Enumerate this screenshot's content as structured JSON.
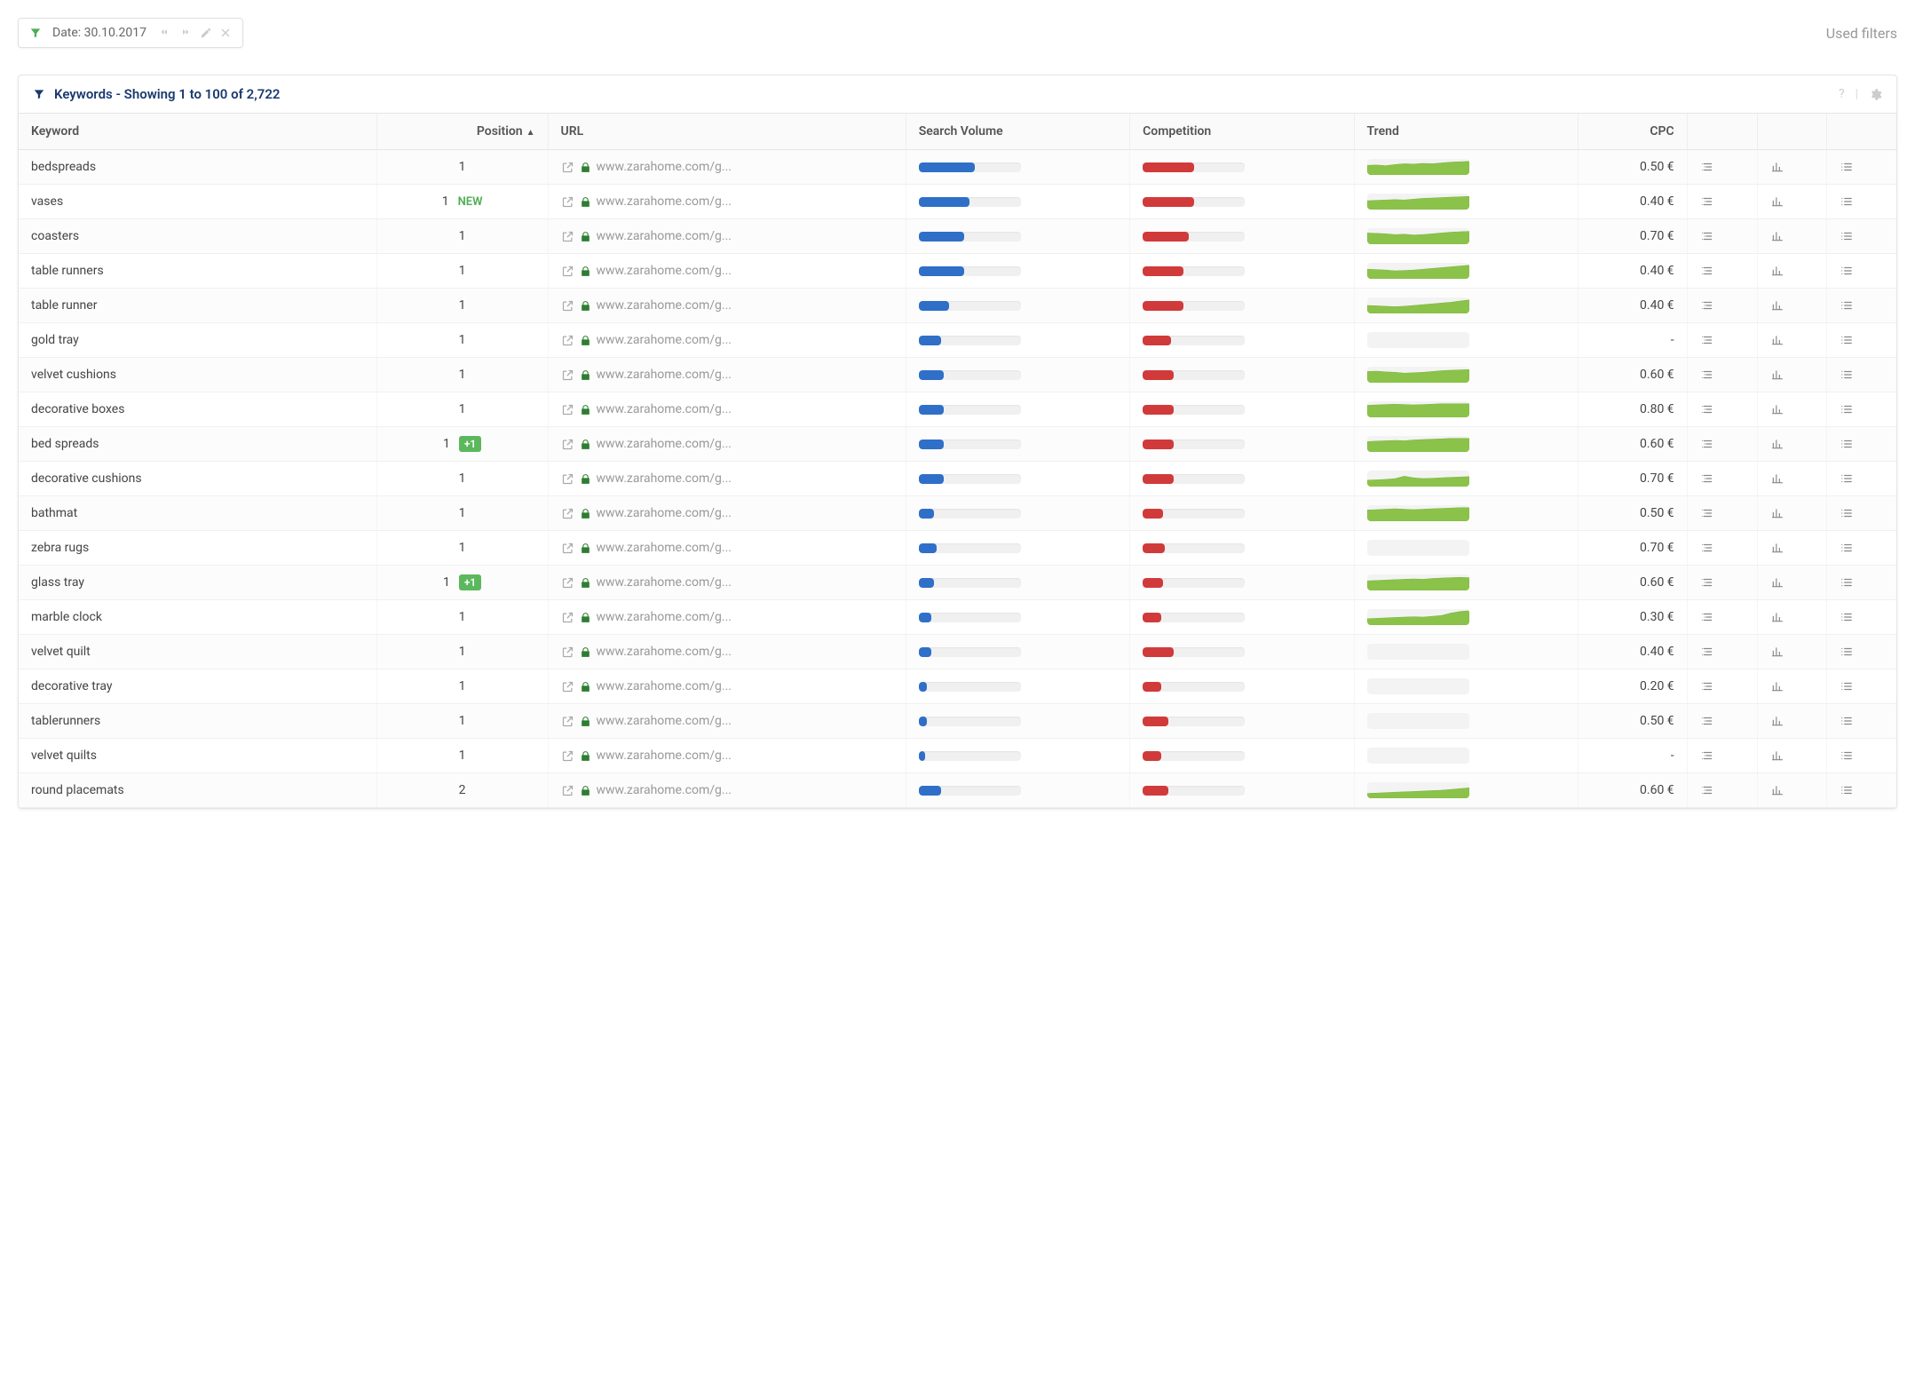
{
  "colors": {
    "sv_bar": "#2f6fc8",
    "comp_bar": "#d13a3a",
    "trend_fill": "#8bc34a",
    "trend_line": "#7cb342",
    "funnel_green": "#4caf50",
    "funnel_blue": "#1a3a6e",
    "lock_green": "#2e7d32",
    "badge_green": "#5cb85c"
  },
  "topbar": {
    "date_label": "Date: 30.10.2017",
    "used_filters": "Used filters"
  },
  "panel": {
    "title": "Keywords - Showing 1 to 100 of 2,722"
  },
  "columns": {
    "keyword": "Keyword",
    "position": "Position",
    "url": "URL",
    "sv": "Search Volume",
    "comp": "Competition",
    "trend": "Trend",
    "cpc": "CPC"
  },
  "rows": [
    {
      "keyword": "bedspreads",
      "position": "1",
      "change": null,
      "url": "www.zarahome.com/g...",
      "sv": 55,
      "comp": 50,
      "trend": [
        0.6,
        0.62,
        0.58,
        0.65,
        0.7,
        0.68,
        0.72,
        0.7,
        0.75,
        0.8,
        0.82,
        0.85
      ],
      "cpc": "0.50 €"
    },
    {
      "keyword": "vases",
      "position": "1",
      "change": "NEW",
      "url": "www.zarahome.com/g...",
      "sv": 50,
      "comp": 50,
      "trend": [
        0.55,
        0.58,
        0.6,
        0.62,
        0.6,
        0.65,
        0.7,
        0.72,
        0.75,
        0.78,
        0.8,
        0.82
      ],
      "cpc": "0.40 €"
    },
    {
      "keyword": "coasters",
      "position": "1",
      "change": null,
      "url": "www.zarahome.com/g...",
      "sv": 45,
      "comp": 45,
      "trend": [
        0.7,
        0.68,
        0.65,
        0.6,
        0.62,
        0.58,
        0.6,
        0.65,
        0.7,
        0.75,
        0.78,
        0.8
      ],
      "cpc": "0.70 €"
    },
    {
      "keyword": "table runners",
      "position": "1",
      "change": null,
      "url": "www.zarahome.com/g...",
      "sv": 45,
      "comp": 40,
      "trend": [
        0.6,
        0.58,
        0.55,
        0.5,
        0.52,
        0.55,
        0.6,
        0.65,
        0.7,
        0.75,
        0.8,
        0.85
      ],
      "cpc": "0.40 €"
    },
    {
      "keyword": "table runner",
      "position": "1",
      "change": null,
      "url": "www.zarahome.com/g...",
      "sv": 30,
      "comp": 40,
      "trend": [
        0.5,
        0.48,
        0.45,
        0.42,
        0.45,
        0.5,
        0.55,
        0.6,
        0.65,
        0.7,
        0.78,
        0.85
      ],
      "cpc": "0.40 €"
    },
    {
      "keyword": "gold tray",
      "position": "1",
      "change": null,
      "url": "www.zarahome.com/g...",
      "sv": 22,
      "comp": 28,
      "trend": null,
      "cpc": "-"
    },
    {
      "keyword": "velvet cushions",
      "position": "1",
      "change": null,
      "url": "www.zarahome.com/g...",
      "sv": 25,
      "comp": 30,
      "trend": [
        0.7,
        0.72,
        0.68,
        0.65,
        0.6,
        0.62,
        0.65,
        0.7,
        0.75,
        0.78,
        0.8,
        0.82
      ],
      "cpc": "0.60 €"
    },
    {
      "keyword": "decorative boxes",
      "position": "1",
      "change": null,
      "url": "www.zarahome.com/g...",
      "sv": 25,
      "comp": 30,
      "trend": [
        0.75,
        0.78,
        0.8,
        0.82,
        0.8,
        0.78,
        0.8,
        0.82,
        0.85,
        0.85,
        0.85,
        0.85
      ],
      "cpc": "0.80 €"
    },
    {
      "keyword": "bed spreads",
      "position": "1",
      "change": "+1",
      "url": "www.zarahome.com/g...",
      "sv": 25,
      "comp": 30,
      "trend": [
        0.65,
        0.68,
        0.7,
        0.72,
        0.7,
        0.75,
        0.78,
        0.8,
        0.82,
        0.85,
        0.85,
        0.85
      ],
      "cpc": "0.60 €"
    },
    {
      "keyword": "decorative cushions",
      "position": "1",
      "change": null,
      "url": "www.zarahome.com/g...",
      "sv": 25,
      "comp": 30,
      "trend": [
        0.4,
        0.42,
        0.45,
        0.5,
        0.65,
        0.55,
        0.5,
        0.52,
        0.55,
        0.58,
        0.6,
        0.62
      ],
      "cpc": "0.70 €"
    },
    {
      "keyword": "bathmat",
      "position": "1",
      "change": null,
      "url": "www.zarahome.com/g...",
      "sv": 15,
      "comp": 20,
      "trend": [
        0.7,
        0.72,
        0.75,
        0.78,
        0.75,
        0.72,
        0.75,
        0.78,
        0.8,
        0.82,
        0.85,
        0.85
      ],
      "cpc": "0.50 €"
    },
    {
      "keyword": "zebra rugs",
      "position": "1",
      "change": null,
      "url": "www.zarahome.com/g...",
      "sv": 18,
      "comp": 22,
      "trend": null,
      "cpc": "0.70 €"
    },
    {
      "keyword": "glass tray",
      "position": "1",
      "change": "+1",
      "url": "www.zarahome.com/g...",
      "sv": 15,
      "comp": 20,
      "trend": [
        0.6,
        0.62,
        0.65,
        0.68,
        0.7,
        0.72,
        0.7,
        0.75,
        0.78,
        0.8,
        0.82,
        0.8
      ],
      "cpc": "0.60 €"
    },
    {
      "keyword": "marble clock",
      "position": "1",
      "change": null,
      "url": "www.zarahome.com/g...",
      "sv": 12,
      "comp": 18,
      "trend": [
        0.4,
        0.42,
        0.45,
        0.48,
        0.5,
        0.52,
        0.5,
        0.55,
        0.6,
        0.75,
        0.85,
        0.9
      ],
      "cpc": "0.30 €"
    },
    {
      "keyword": "velvet quilt",
      "position": "1",
      "change": null,
      "url": "www.zarahome.com/g...",
      "sv": 12,
      "comp": 30,
      "trend": null,
      "cpc": "0.40 €"
    },
    {
      "keyword": "decorative tray",
      "position": "1",
      "change": null,
      "url": "www.zarahome.com/g...",
      "sv": 8,
      "comp": 18,
      "trend": null,
      "cpc": "0.20 €"
    },
    {
      "keyword": "tablerunners",
      "position": "1",
      "change": null,
      "url": "www.zarahome.com/g...",
      "sv": 8,
      "comp": 25,
      "trend": null,
      "cpc": "0.50 €"
    },
    {
      "keyword": "velvet quilts",
      "position": "1",
      "change": null,
      "url": "www.zarahome.com/g...",
      "sv": 6,
      "comp": 18,
      "trend": null,
      "cpc": "-"
    },
    {
      "keyword": "round placemats",
      "position": "2",
      "change": null,
      "url": "www.zarahome.com/g...",
      "sv": 22,
      "comp": 25,
      "trend": [
        0.3,
        0.32,
        0.35,
        0.38,
        0.4,
        0.42,
        0.45,
        0.48,
        0.5,
        0.55,
        0.6,
        0.65
      ],
      "cpc": "0.60 €"
    }
  ]
}
